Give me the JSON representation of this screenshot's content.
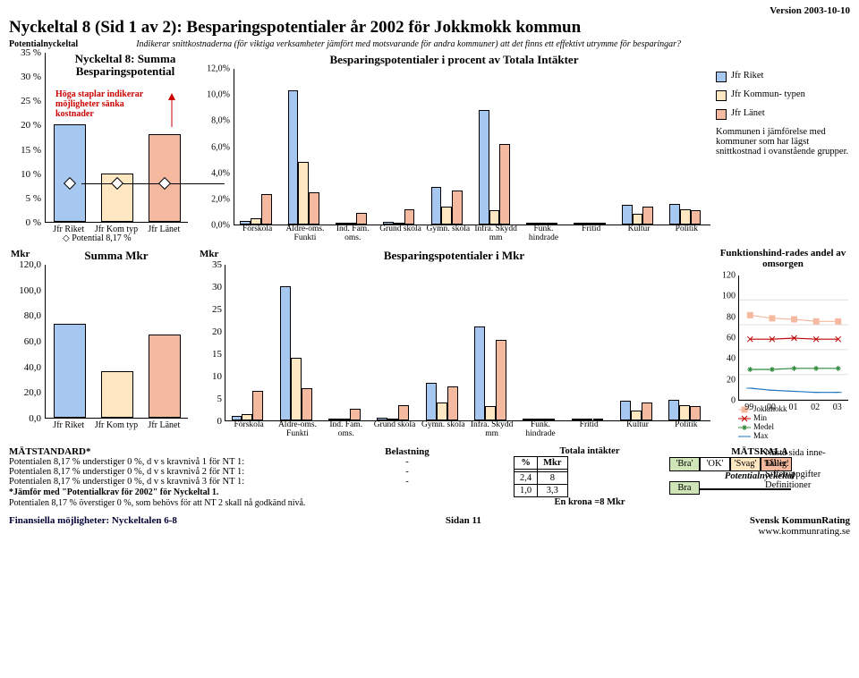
{
  "version": "Version 2003-10-10",
  "heading": "Nyckeltal 8 (Sid 1 av 2): Besparingspotentialer år 2002 för Jokkmokk kommun",
  "sublead_label": "Potentialnyckeltal",
  "sublead_text": "Indikerar snittkostnaderna (för viktiga verksamheter jämfört med motsvarande för andra kommuner) att det finns ett effektivt utrymme för besparingar?",
  "colors": {
    "riket": "#a6c8f0",
    "komtyp": "#ffe7c2",
    "lanet": "#f5b9a0",
    "grid": "#e0e0e0",
    "red": "#c00000",
    "bg": "#ffffff",
    "highlight_blank": "#ffffff",
    "bra_series": "#cfe5b8"
  },
  "panel1": {
    "title": "Nyckeltal 8: Summa Besparingspotential",
    "note": "Höga staplar indikerar möjligheter sänka kostnader",
    "ylim": [
      0,
      35
    ],
    "ytick": 5,
    "ylabel_suffix": " %",
    "categories": [
      "Jfr Riket",
      "Jfr Kom typ",
      "Jfr Länet"
    ],
    "values": [
      20,
      10,
      18
    ],
    "bar_colors": [
      "#a6c8f0",
      "#ffe7c2",
      "#f5b9a0"
    ],
    "potential_line_label": "Potential 8,17 %",
    "potential_value": 8.17
  },
  "panel2": {
    "title": "Besparingspotentialer i procent av Totala Intäkter",
    "ylim": [
      0,
      12
    ],
    "yticks": [
      "0,0%",
      "2,0%",
      "4,0%",
      "6,0%",
      "8,0%",
      "10,0%",
      "12,0%"
    ],
    "categories": [
      "Förskola",
      "Äldre-oms. Funkti",
      "Ind. Fam. oms.",
      "Grund skola",
      "Gymn. skola",
      "Infra. Skydd mm",
      "Funk. hindrade",
      "Fritid",
      "Kultur",
      "Politik"
    ],
    "series": [
      {
        "name": "Jfr Riket",
        "color": "#a6c8f0",
        "values": [
          0.3,
          10.3,
          0.1,
          0.2,
          2.9,
          8.8,
          0.0,
          0.0,
          1.5,
          1.6
        ]
      },
      {
        "name": "Jfr Kommuntypen",
        "color": "#ffe7c2",
        "values": [
          0.5,
          4.8,
          0.0,
          0.0,
          1.4,
          1.1,
          0.0,
          0.0,
          0.8,
          1.2
        ]
      },
      {
        "name": "Jfr Länet",
        "color": "#f5b9a0",
        "values": [
          2.3,
          2.5,
          0.9,
          1.2,
          2.6,
          6.2,
          0.0,
          0.0,
          1.4,
          1.1
        ]
      }
    ]
  },
  "legend": {
    "items": [
      {
        "label": "Jfr Riket",
        "color": "#a6c8f0"
      },
      {
        "label": "Jfr Kommun- typen",
        "color": "#ffe7c2"
      },
      {
        "label": "Jfr Länet",
        "color": "#f5b9a0"
      }
    ],
    "note": "Kommunen i jämförelse med kommuner som har lägst snittkostnad i ovanstående  grupper."
  },
  "panel3": {
    "title": "Summa Mkr",
    "mkr_label": "Mkr",
    "ylim": [
      0,
      120
    ],
    "yticks": [
      "0,0",
      "20,0",
      "40,0",
      "60,0",
      "80,0",
      "100,0",
      "120,0"
    ],
    "categories": [
      "Jfr Riket",
      "Jfr Kom typ",
      "Jfr Länet"
    ],
    "values": [
      73,
      36,
      65
    ],
    "bar_colors": [
      "#a6c8f0",
      "#ffe7c2",
      "#f5b9a0"
    ]
  },
  "panel4": {
    "title": "Besparingspotentialer i Mkr",
    "mkr_label": "Mkr",
    "ylim": [
      0,
      35
    ],
    "yticks": [
      "0",
      "5",
      "10",
      "15",
      "20",
      "25",
      "30",
      "35"
    ],
    "categories": [
      "Förskola",
      "Äldre-oms. Funkti",
      "Ind. Fam. oms.",
      "Grund skola",
      "Gymn. skola",
      "Infra. Skydd mm",
      "Funk. hindrade",
      "Fritid",
      "Kultur",
      "Politik"
    ],
    "series": [
      {
        "name": "Jfr Riket",
        "color": "#a6c8f0",
        "values": [
          1,
          30,
          0.3,
          0.6,
          8.5,
          21,
          0,
          0,
          4.4,
          4.7
        ]
      },
      {
        "name": "Jfr Kommuntypen",
        "color": "#ffe7c2",
        "values": [
          1.5,
          14,
          0,
          0,
          4.1,
          3.2,
          0,
          0,
          2.3,
          3.5
        ]
      },
      {
        "name": "Jfr Länet",
        "color": "#f5b9a0",
        "values": [
          6.7,
          7.3,
          2.6,
          3.5,
          7.6,
          18,
          0,
          0,
          4.1,
          3.2
        ]
      }
    ]
  },
  "panel5": {
    "title": "Funktionshind-rades andel av omsorgen",
    "ylim": [
      0,
      120
    ],
    "yticks": [
      "0",
      "20",
      "40",
      "60",
      "80",
      "100",
      "120"
    ],
    "categories": [
      "99",
      "00",
      "01",
      "02",
      "03"
    ],
    "series": [
      {
        "name": "Jokkmokk",
        "color": "#f5b9a0",
        "marker": "square",
        "values": [
          82,
          79,
          78,
          76,
          76
        ]
      },
      {
        "name": "Min",
        "color": "#c00000",
        "marker": "x",
        "values": [
          59,
          59,
          60,
          59,
          59
        ]
      },
      {
        "name": "Medel",
        "color": "#2e8b3d",
        "marker": "asterisk",
        "values": [
          30,
          30,
          31,
          31,
          31
        ]
      },
      {
        "name": "Max",
        "color": "#1e74c0",
        "marker": "dash",
        "values": [
          12,
          10,
          9,
          8,
          8
        ]
      }
    ]
  },
  "bottom": {
    "matstandard_label": "MÄTSTANDARD*",
    "belastning_label": "Belastning",
    "lines": [
      {
        "a": "Potentialen 8,17 % understiger 0 %, d v s kravnivå 1 för NT 1:",
        "b": "-"
      },
      {
        "a": "Potentialen 8,17 % understiger 0 %, d v s kravnivå 2 för NT 1:",
        "b": "-"
      },
      {
        "a": "Potentialen 8,17 % understiger 0 %, d v s kravnivå 3 för NT 1:",
        "b": "-"
      }
    ],
    "note1": "*Jämför med \"Potentialkrav för 2002\" för Nyckeltal 1.",
    "note2": "Potentialen 8,17 % överstiger 0 %, som behövs för att NT 2 skall nå godkänd nivå.",
    "midheader": "Totala intäkter",
    "midcols": [
      "%",
      "Mkr"
    ],
    "midrows": [
      [
        "",
        ""
      ],
      [
        "2,4",
        "8"
      ],
      [
        "1,0",
        "3,3"
      ]
    ],
    "midfoot": "En krona =8 Mkr",
    "matskala_label": "MÄTSKALA",
    "matskala_cells": [
      "'Bra'",
      "'OK'",
      "'Svag'",
      "'Dålig'"
    ],
    "matskala_colors": [
      "#cfe5b8",
      "#ffffff",
      "#ffe7c2",
      "#f5b9a0"
    ],
    "matskala_sub": "Potentialnyckeltal",
    "matskala_row": [
      "Bra",
      "",
      "",
      ""
    ],
    "matskala_row_colors": [
      "#cfe5b8",
      "#ffffff",
      "#ffe7c2",
      "#f5b9a0"
    ],
    "nextpage": "Nästa sida inne- håller:",
    "nextpage_items": [
      "Sifferuppgifter",
      "Definitioner"
    ]
  },
  "footer": {
    "left": "Finansiella möjligheter: Nyckeltalen 6-8",
    "center": "Sidan 11",
    "right1": "Svensk KommunRating",
    "right2": "www.kommunrating.se"
  }
}
